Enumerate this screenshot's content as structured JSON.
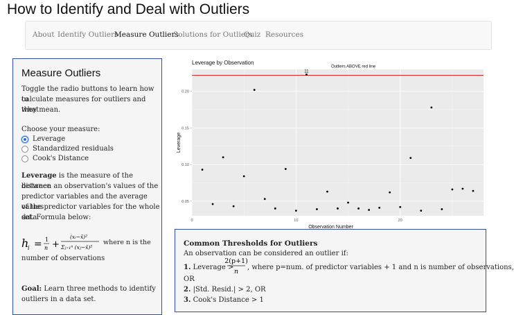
{
  "app": {
    "title": "How to Identify and Deal with Outliers"
  },
  "nav": {
    "items": [
      {
        "label": "About"
      },
      {
        "label": "Identify Outliers"
      },
      {
        "label": "Measure Outliers"
      },
      {
        "label": "Solutions for Outliers"
      },
      {
        "label": "Quiz"
      },
      {
        "label": "Resources"
      }
    ],
    "active": "Measure Outliers"
  },
  "sidebar": {
    "title": "Measure Outliers",
    "intro_lines": [
      "Toggle the radio buttons to learn how to",
      "calculate measures for outliers and what",
      "they mean."
    ],
    "choose_label": "Choose your measure:",
    "options": [
      {
        "label": "Leverage",
        "checked": true
      },
      {
        "label": "Standardized residuals",
        "checked": false
      },
      {
        "label": "Cook's Distance",
        "checked": false
      }
    ],
    "leverage_bold": "Leverage",
    "desc_lines": [
      " is the measure of the distance",
      "between an observation's values of the",
      "predictor variables and the average values",
      "of the predictor variables for the whole data",
      "set. Formula below:"
    ],
    "formula_suffix": "where n is the",
    "formula_suffix2": "number of observations",
    "goal_bold": "Goal:",
    "goal_lines": [
      " Learn three methods to identify",
      "outliers in a data set."
    ]
  },
  "chart_data": {
    "type": "scatter",
    "title": "Leverage by Observation",
    "xlabel": "Observation Number",
    "ylabel": "Leverage",
    "xlim": [
      0,
      28
    ],
    "ylim": [
      0.03,
      0.23
    ],
    "x_ticks": [
      0,
      10,
      20
    ],
    "y_ticks": [
      0.05,
      0.1,
      0.15,
      0.2
    ],
    "y_tick_labels": [
      "0.05",
      "0.10",
      "0.15",
      "0.20"
    ],
    "x_tick_labels": [
      "0",
      "10",
      "20"
    ],
    "threshold": {
      "value": 0.222,
      "label": "Outliers ABOVE red line",
      "color": "#d62728"
    },
    "point_label": {
      "x": 11,
      "text": "11"
    },
    "grid": true,
    "background": "#ebebeb",
    "points": [
      {
        "x": 1,
        "y": 0.093
      },
      {
        "x": 2,
        "y": 0.046
      },
      {
        "x": 3,
        "y": 0.11
      },
      {
        "x": 4,
        "y": 0.043
      },
      {
        "x": 5,
        "y": 0.084
      },
      {
        "x": 6,
        "y": 0.202
      },
      {
        "x": 7,
        "y": 0.053
      },
      {
        "x": 8,
        "y": 0.04
      },
      {
        "x": 9,
        "y": 0.094
      },
      {
        "x": 10,
        "y": 0.037
      },
      {
        "x": 11,
        "y": 0.223
      },
      {
        "x": 12,
        "y": 0.039
      },
      {
        "x": 13,
        "y": 0.063
      },
      {
        "x": 14,
        "y": 0.04
      },
      {
        "x": 15,
        "y": 0.048
      },
      {
        "x": 16,
        "y": 0.04
      },
      {
        "x": 17,
        "y": 0.038
      },
      {
        "x": 18,
        "y": 0.041
      },
      {
        "x": 19,
        "y": 0.062
      },
      {
        "x": 20,
        "y": 0.042
      },
      {
        "x": 21,
        "y": 0.109
      },
      {
        "x": 22,
        "y": 0.037
      },
      {
        "x": 23,
        "y": 0.178
      },
      {
        "x": 24,
        "y": 0.039
      },
      {
        "x": 25,
        "y": 0.066
      },
      {
        "x": 26,
        "y": 0.067
      },
      {
        "x": 27,
        "y": 0.064
      }
    ]
  },
  "thresholds": {
    "title": "Common Thresholds for Outliers",
    "intro": "An observation can be considered an outlier if:",
    "l1_num": "1.",
    "l1_text": "Leverage >",
    "l1_frac_num": "2(p+1)",
    "l1_frac_den": "n",
    "l1_rest": ", where p=num. of predictor variables + 1 and n is number of observations,",
    "l1_or": "OR",
    "l2_num": "2.",
    "l2_text": "|Std. Resid.| > 2, OR",
    "l3_num": "3.",
    "l3_text": "Cook's Distance > 1"
  },
  "colors": {
    "accent_border": "#2f4da6",
    "radio_selected": "#2a6ad6",
    "threshold_line": "#d62728"
  }
}
